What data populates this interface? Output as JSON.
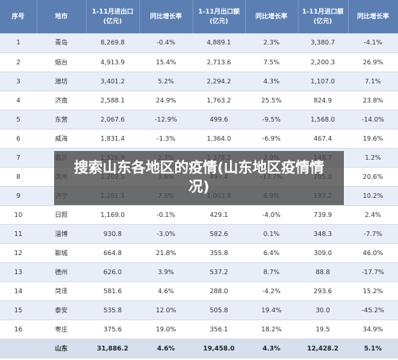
{
  "headers": [
    "序号",
    "地市",
    "1-11月进出口\n(亿元)",
    "同比增长率",
    "1-11月出口额\n(亿元)",
    "同比增长率",
    "1-11月进口额\n(亿元)",
    "同比增长率"
  ],
  "rows": [
    [
      "1",
      "青岛",
      "8,269.8",
      "-0.4%",
      "4,889.1",
      "2.3%",
      "3,380.7",
      "-4.1%"
    ],
    [
      "2",
      "烟台",
      "4,913.9",
      "15.4%",
      "2,713.6",
      "7.5%",
      "2,200.3",
      "26.9%"
    ],
    [
      "3",
      "潍坊",
      "3,401.2",
      "5.2%",
      "2,294.2",
      "4.3%",
      "1,107.0",
      "7.1%"
    ],
    [
      "4",
      "济南",
      "2,588.1",
      "24.9%",
      "1,763.2",
      "25.5%",
      "824.9",
      "23.8%"
    ],
    [
      "5",
      "东营",
      "2,067.6",
      "-12.9%",
      "499.6",
      "-9.5%",
      "1,568.0",
      "-14.0%"
    ],
    [
      "6",
      "威海",
      "1,831.4",
      "-1.3%",
      "1,364.0",
      "-6.9%",
      "467.4",
      "19.6%"
    ],
    [
      "7",
      "临沂",
      "1,526.9",
      "2.7%",
      "1,378.2",
      "2.9%",
      "148.7",
      "1.2%"
    ],
    [
      "8",
      "滨州",
      "1,202.5",
      "3.6%",
      "497.4",
      "-13.7%",
      "705.0",
      "20.6%"
    ],
    [
      "9",
      "济宁",
      "1,201.1",
      "7.5%",
      "1,003.9",
      "6.9%",
      "197.2",
      "10.2%"
    ],
    [
      "10",
      "日照",
      "1,169.0",
      "-0.1%",
      "429.1",
      "-4.0%",
      "739.9",
      "2.4%"
    ],
    [
      "11",
      "淄博",
      "930.8",
      "-3.0%",
      "582.6",
      "0.1%",
      "348.3",
      "-7.7%"
    ],
    [
      "12",
      "聊城",
      "664.8",
      "21.8%",
      "355.8",
      "6.4%",
      "309.0",
      "46.0%"
    ],
    [
      "13",
      "德州",
      "626.0",
      "3.9%",
      "537.2",
      "8.7%",
      "88.8",
      "-17.7%"
    ],
    [
      "14",
      "菏泽",
      "581.6",
      "4.6%",
      "288.0",
      "-4.2%",
      "293.6",
      "15.2%"
    ],
    [
      "15",
      "泰安",
      "535.8",
      "12.0%",
      "505.8",
      "19.4%",
      "30.0",
      "-45.2%"
    ],
    [
      "16",
      "枣庄",
      "375.6",
      "19.0%",
      "356.1",
      "18.2%",
      "19.5",
      "34.9%"
    ]
  ],
  "total": [
    "",
    "山东",
    "31,886.2",
    "4.6%",
    "19,458.0",
    "4.3%",
    "12,428.2",
    "5.1%"
  ],
  "overlay_caption": "搜索山东各地区的疫情(山东地区疫情情况)",
  "colors": {
    "header_bg": "#5b7fb3",
    "row_odd": "#e8eef7",
    "row_even": "#ffffff",
    "total_bg": "#d5dfee"
  }
}
